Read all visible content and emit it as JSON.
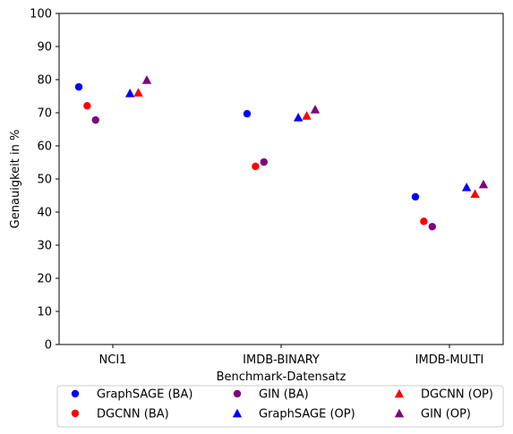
{
  "chart_data": {
    "type": "scatter",
    "xlabel": "Benchmark-Datensatz",
    "ylabel": "Genauigkeit in %",
    "categories": [
      "NCI1",
      "IMDB-BINARY",
      "IMDB-MULTI"
    ],
    "ylim": [
      0,
      100
    ],
    "yticks": [
      0,
      10,
      20,
      30,
      40,
      50,
      60,
      70,
      80,
      90,
      100
    ],
    "grid": false,
    "legend_position": "bottom",
    "series": [
      {
        "name": "GraphSAGE (BA)",
        "marker": "circle",
        "color": "#0000ff",
        "values": [
          77.8,
          69.7,
          44.6
        ]
      },
      {
        "name": "DGCNN (BA)",
        "marker": "circle",
        "color": "#ff0000",
        "values": [
          72.1,
          53.8,
          37.2
        ]
      },
      {
        "name": "GIN (BA)",
        "marker": "circle",
        "color": "#800080",
        "values": [
          67.8,
          55.1,
          35.6
        ]
      },
      {
        "name": "GraphSAGE (OP)",
        "marker": "triangle",
        "color": "#0000ff",
        "values": [
          75.9,
          68.6,
          47.5
        ]
      },
      {
        "name": "DGCNN (OP)",
        "marker": "triangle",
        "color": "#ff0000",
        "values": [
          76.1,
          69.1,
          45.5
        ]
      },
      {
        "name": "GIN (OP)",
        "marker": "triangle",
        "color": "#800080",
        "values": [
          79.9,
          71.0,
          48.4
        ]
      }
    ]
  }
}
